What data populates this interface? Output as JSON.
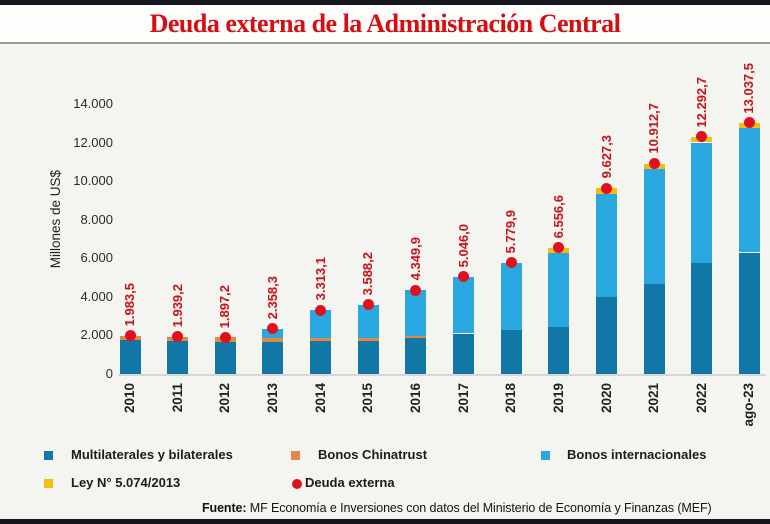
{
  "page": {
    "title": "Deuda externa de la Administración Central",
    "source_label": "Fuente:",
    "source_text": " MF Economía e Inversiones con datos del Ministerio de Economía y Finanzas (MEF)"
  },
  "colors": {
    "border_bar": "#16161f",
    "title_red": "#d60d12",
    "value_label_red": "#c8121a",
    "background": "#f4f4f0",
    "axis_line": "#d8d8d2"
  },
  "chart_data": {
    "type": "bar",
    "stacked": true,
    "title": "Deuda externa de la Administración Central",
    "ylabel": "Millones de US$",
    "ylim": [
      0,
      14000
    ],
    "ytick_step": 2000,
    "yticks": [
      "0",
      "2.000",
      "4.000",
      "6.000",
      "8.000",
      "10.000",
      "12.000",
      "14.000"
    ],
    "grid": false,
    "legend_position": "bottom",
    "categories": [
      "2010",
      "2011",
      "2012",
      "2013",
      "2014",
      "2015",
      "2016",
      "2017",
      "2018",
      "2019",
      "2020",
      "2021",
      "2022",
      "ago-23"
    ],
    "series": [
      {
        "name": "Multilaterales y bilaterales",
        "key": "multilaterales-y-bilaterales",
        "color": "#1177a6",
        "values": [
          1750,
          1700,
          1650,
          1650,
          1700,
          1700,
          1850,
          2100,
          2300,
          2450,
          4000,
          4650,
          5750,
          6300
        ]
      },
      {
        "name": "Bonos Chinatrust",
        "key": "bonos-chinatrust",
        "color": "#e18a44",
        "values": [
          233.5,
          239.2,
          247.2,
          208.3,
          180,
          160,
          100,
          0,
          0,
          0,
          0,
          0,
          0,
          0
        ]
      },
      {
        "name": "Bonos internacionales",
        "key": "bonos-internacionales",
        "color": "#29a8e0",
        "values": [
          0,
          0,
          0,
          500,
          1433.1,
          1728.2,
          2399.9,
          2946,
          3479.9,
          3826.6,
          5347.3,
          5962.7,
          6252.7,
          6437.5
        ]
      },
      {
        "name": "Ley N° 5.074/2013",
        "key": "ley-5074-2013",
        "color": "#f8bc0e",
        "values": [
          0,
          0,
          0,
          0,
          0,
          0,
          0,
          0,
          0,
          280,
          280,
          300,
          290,
          300
        ]
      }
    ],
    "totals": {
      "name": "Deuda externa",
      "color": "#e0111c",
      "values": [
        1983.5,
        1939.2,
        1897.2,
        2358.3,
        3313.1,
        3588.2,
        4349.9,
        5046.0,
        5779.9,
        6556.6,
        9627.3,
        10912.7,
        12292.7,
        13037.5
      ],
      "labels": [
        "1.983,5",
        "1.939,2",
        "1.897,2",
        "2.358,3",
        "3.313,1",
        "3.588,2",
        "4.349,9",
        "5.046,0",
        "5.779,9",
        "6.556,6",
        "9.627,3",
        "10.912,7",
        "12.292,7",
        "13.037,5"
      ]
    }
  },
  "legend": {
    "items": [
      {
        "label": "Multilaterales y bilaterales",
        "marker": "square",
        "color": "#1177a6"
      },
      {
        "label": "Bonos Chinatrust",
        "marker": "square",
        "color": "#e18a44"
      },
      {
        "label": "Bonos internacionales",
        "marker": "square",
        "color": "#29a8e0"
      },
      {
        "label": "Ley N° 5.074/2013",
        "marker": "square",
        "color": "#f8bc0e"
      },
      {
        "label": "Deuda externa",
        "marker": "dot",
        "color": "#e0111c"
      }
    ]
  }
}
